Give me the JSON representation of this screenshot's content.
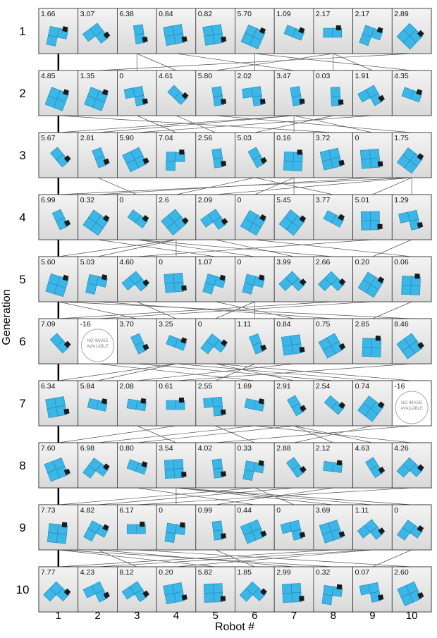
{
  "y_label": "Generation",
  "x_label": "Robot #",
  "robots": [
    "1",
    "2",
    "3",
    "4",
    "5",
    "6",
    "7",
    "8",
    "9",
    "10"
  ],
  "generations": [
    {
      "label": "1",
      "cells": [
        {
          "fitness": "1.66"
        },
        {
          "fitness": "3.07"
        },
        {
          "fitness": "6.38"
        },
        {
          "fitness": "0.84"
        },
        {
          "fitness": "0.82"
        },
        {
          "fitness": "5.70"
        },
        {
          "fitness": "1.09"
        },
        {
          "fitness": "2.17"
        },
        {
          "fitness": "2.17"
        },
        {
          "fitness": "2.89"
        }
      ]
    },
    {
      "label": "2",
      "cells": [
        {
          "fitness": "4.85"
        },
        {
          "fitness": "1.35"
        },
        {
          "fitness": "0"
        },
        {
          "fitness": "4.61"
        },
        {
          "fitness": "5.80"
        },
        {
          "fitness": "2.02"
        },
        {
          "fitness": "3.47"
        },
        {
          "fitness": "0.03"
        },
        {
          "fitness": "1.91"
        },
        {
          "fitness": "4.35"
        }
      ]
    },
    {
      "label": "3",
      "cells": [
        {
          "fitness": "5.67"
        },
        {
          "fitness": "2.81"
        },
        {
          "fitness": "5.90"
        },
        {
          "fitness": "7.04"
        },
        {
          "fitness": "2.56"
        },
        {
          "fitness": "5.03"
        },
        {
          "fitness": "0.16"
        },
        {
          "fitness": "3.72"
        },
        {
          "fitness": "0"
        },
        {
          "fitness": "1.75"
        }
      ]
    },
    {
      "label": "4",
      "cells": [
        {
          "fitness": "6.99"
        },
        {
          "fitness": "0.32"
        },
        {
          "fitness": "0"
        },
        {
          "fitness": "2.6"
        },
        {
          "fitness": "2.09"
        },
        {
          "fitness": "0"
        },
        {
          "fitness": "5.45"
        },
        {
          "fitness": "3.77"
        },
        {
          "fitness": "5.01"
        },
        {
          "fitness": "1.29"
        }
      ]
    },
    {
      "label": "5",
      "cells": [
        {
          "fitness": "5.60"
        },
        {
          "fitness": "5.03"
        },
        {
          "fitness": "4.60"
        },
        {
          "fitness": "0"
        },
        {
          "fitness": "1.07"
        },
        {
          "fitness": "0"
        },
        {
          "fitness": "3.99"
        },
        {
          "fitness": "2.66"
        },
        {
          "fitness": "0.20"
        },
        {
          "fitness": "0.06"
        }
      ]
    },
    {
      "label": "6",
      "cells": [
        {
          "fitness": "7.09"
        },
        {
          "fitness": "-16",
          "image_note": "NO IMAGE AVAILABLE"
        },
        {
          "fitness": "3.70"
        },
        {
          "fitness": "3.25"
        },
        {
          "fitness": "0"
        },
        {
          "fitness": "1.11"
        },
        {
          "fitness": "0.84"
        },
        {
          "fitness": "0.75"
        },
        {
          "fitness": "2.85"
        },
        {
          "fitness": "8.46"
        }
      ]
    },
    {
      "label": "7",
      "cells": [
        {
          "fitness": "6.34"
        },
        {
          "fitness": "5.84"
        },
        {
          "fitness": "2.08"
        },
        {
          "fitness": "0.61"
        },
        {
          "fitness": "2.55"
        },
        {
          "fitness": "1.69"
        },
        {
          "fitness": "2.91"
        },
        {
          "fitness": "2.54"
        },
        {
          "fitness": "0.74"
        },
        {
          "fitness": "-16",
          "image_note": "NO IMAGE AVAILABLE"
        }
      ]
    },
    {
      "label": "8",
      "cells": [
        {
          "fitness": "7.60"
        },
        {
          "fitness": "6.98"
        },
        {
          "fitness": "0.80"
        },
        {
          "fitness": "3.54"
        },
        {
          "fitness": "4.02"
        },
        {
          "fitness": "0.33"
        },
        {
          "fitness": "2.88"
        },
        {
          "fitness": "2.12"
        },
        {
          "fitness": "4.63"
        },
        {
          "fitness": "4.26"
        }
      ]
    },
    {
      "label": "9",
      "cells": [
        {
          "fitness": "7.73"
        },
        {
          "fitness": "4.82"
        },
        {
          "fitness": "6.17"
        },
        {
          "fitness": "0"
        },
        {
          "fitness": "0.99"
        },
        {
          "fitness": "0.44"
        },
        {
          "fitness": "0"
        },
        {
          "fitness": "3.69"
        },
        {
          "fitness": "1.11"
        },
        {
          "fitness": "0"
        }
      ]
    },
    {
      "label": "10",
      "cells": [
        {
          "fitness": "7.77"
        },
        {
          "fitness": "4.23"
        },
        {
          "fitness": "8.12"
        },
        {
          "fitness": "0.20"
        },
        {
          "fitness": "5.82"
        },
        {
          "fitness": "1.85"
        },
        {
          "fitness": "2.99"
        },
        {
          "fitness": "0.32"
        },
        {
          "fitness": "0.07"
        },
        {
          "fitness": "2.60"
        }
      ]
    }
  ]
}
